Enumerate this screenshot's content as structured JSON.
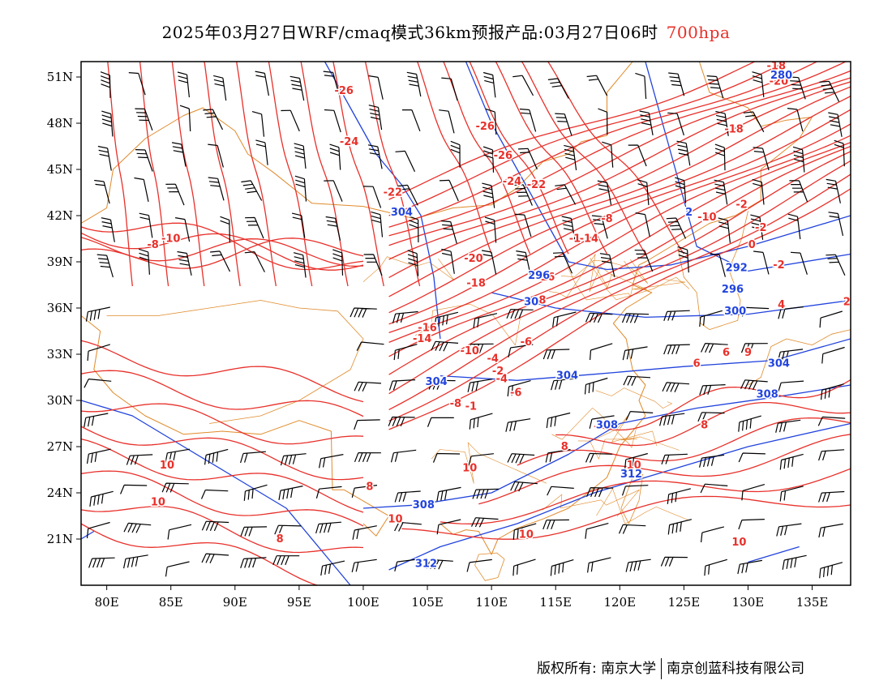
{
  "title": {
    "main": "2025年03月27日WRF/cmaq模式36km预报产品:03月27日06时",
    "level": "700hpa"
  },
  "colors": {
    "temperature": "#e8302a",
    "geopotential": "#2244dd",
    "border": "#e08a2a",
    "wind": "#000000",
    "level_text": "#e8302a"
  },
  "axes": {
    "lon_labels": [
      "80E",
      "85E",
      "90E",
      "95E",
      "100E",
      "105E",
      "110E",
      "115E",
      "120E",
      "125E",
      "130E",
      "135E"
    ],
    "lon_values": [
      80,
      85,
      90,
      95,
      100,
      105,
      110,
      115,
      120,
      125,
      130,
      135
    ],
    "lat_labels": [
      "51N",
      "48N",
      "45N",
      "42N",
      "39N",
      "36N",
      "33N",
      "30N",
      "27N",
      "24N",
      "21N"
    ],
    "lat_values": [
      51,
      48,
      45,
      42,
      39,
      36,
      33,
      30,
      27,
      24,
      21
    ],
    "lon_range": [
      78,
      138
    ],
    "lat_range": [
      18,
      52
    ]
  },
  "temperature_labels": [
    {
      "text": "-26",
      "lon": 98.5,
      "lat": 50.1
    },
    {
      "text": "-24",
      "lon": 98.9,
      "lat": 46.8
    },
    {
      "text": "-26",
      "lon": 109.5,
      "lat": 47.8
    },
    {
      "text": "-26",
      "lon": 110.9,
      "lat": 45.9
    },
    {
      "text": "-24",
      "lon": 111.6,
      "lat": 44.2
    },
    {
      "text": "-22",
      "lon": 113.5,
      "lat": 44.0
    },
    {
      "text": "-22",
      "lon": 102.3,
      "lat": 43.5
    },
    {
      "text": "-20",
      "lon": 108.6,
      "lat": 39.2
    },
    {
      "text": "-18",
      "lon": 108.8,
      "lat": 37.6
    },
    {
      "text": "-18",
      "lon": 132.2,
      "lat": 51.7
    },
    {
      "text": "-20",
      "lon": 132.4,
      "lat": 50.7
    },
    {
      "text": "-18",
      "lon": 128.9,
      "lat": 47.6
    },
    {
      "text": "-8",
      "lon": 83.6,
      "lat": 40.1
    },
    {
      "text": "-10",
      "lon": 85.0,
      "lat": 40.5
    },
    {
      "text": "-16",
      "lon": 105.0,
      "lat": 34.7
    },
    {
      "text": "-14",
      "lon": 104.6,
      "lat": 34.0
    },
    {
      "text": "-16",
      "lon": 114.2,
      "lat": 38.0
    },
    {
      "text": "-8",
      "lon": 113.8,
      "lat": 36.5
    },
    {
      "text": "-14",
      "lon": 117.6,
      "lat": 40.5
    },
    {
      "text": "-1",
      "lon": 116.5,
      "lat": 40.5
    },
    {
      "text": "-10",
      "lon": 126.8,
      "lat": 41.9
    },
    {
      "text": "-2",
      "lon": 129.5,
      "lat": 42.7
    },
    {
      "text": "-10",
      "lon": 108.3,
      "lat": 33.2
    },
    {
      "text": "-6",
      "lon": 112.7,
      "lat": 33.8
    },
    {
      "text": "-4",
      "lon": 110.1,
      "lat": 32.7
    },
    {
      "text": "-2",
      "lon": 110.5,
      "lat": 31.9
    },
    {
      "text": "-4",
      "lon": 110.8,
      "lat": 31.4
    },
    {
      "text": "-6",
      "lon": 111.9,
      "lat": 30.5
    },
    {
      "text": "-8",
      "lon": 107.2,
      "lat": 29.8
    },
    {
      "text": "-1",
      "lon": 108.4,
      "lat": 29.6
    },
    {
      "text": "-2",
      "lon": 131.0,
      "lat": 41.2
    },
    {
      "text": "0",
      "lon": 130.3,
      "lat": 40.1
    },
    {
      "text": "-2",
      "lon": 132.4,
      "lat": 38.8
    },
    {
      "text": "4",
      "lon": 132.6,
      "lat": 36.2
    },
    {
      "text": "2",
      "lon": 137.7,
      "lat": 36.4
    },
    {
      "text": "6",
      "lon": 128.3,
      "lat": 33.1
    },
    {
      "text": "9",
      "lon": 130.0,
      "lat": 33.1
    },
    {
      "text": "6",
      "lon": 126.0,
      "lat": 32.4
    },
    {
      "text": "8",
      "lon": 126.6,
      "lat": 28.4
    },
    {
      "text": "8",
      "lon": 115.7,
      "lat": 27.0
    },
    {
      "text": "10",
      "lon": 84.7,
      "lat": 25.8
    },
    {
      "text": "10",
      "lon": 84.0,
      "lat": 23.4
    },
    {
      "text": "8",
      "lon": 93.5,
      "lat": 21.0
    },
    {
      "text": "8",
      "lon": 100.5,
      "lat": 24.4
    },
    {
      "text": "10",
      "lon": 102.5,
      "lat": 22.3
    },
    {
      "text": "10",
      "lon": 108.3,
      "lat": 25.6
    },
    {
      "text": "10",
      "lon": 112.7,
      "lat": 21.3
    },
    {
      "text": "10",
      "lon": 121.1,
      "lat": 25.8
    },
    {
      "text": "10",
      "lon": 129.3,
      "lat": 20.8
    },
    {
      "text": "-8",
      "lon": 119.0,
      "lat": 41.8
    }
  ],
  "geopotential_labels": [
    {
      "text": "280",
      "lon": 132.6,
      "lat": 51.1
    },
    {
      "text": "304",
      "lon": 103.0,
      "lat": 42.2
    },
    {
      "text": "292",
      "lon": 129.1,
      "lat": 38.6
    },
    {
      "text": "296",
      "lon": 128.8,
      "lat": 37.2
    },
    {
      "text": "300",
      "lon": 129.0,
      "lat": 35.8
    },
    {
      "text": "296",
      "lon": 113.7,
      "lat": 38.1
    },
    {
      "text": "30",
      "lon": 113.1,
      "lat": 36.4
    },
    {
      "text": "304",
      "lon": 115.9,
      "lat": 31.6
    },
    {
      "text": "304",
      "lon": 105.7,
      "lat": 31.2
    },
    {
      "text": "304",
      "lon": 132.4,
      "lat": 32.4
    },
    {
      "text": "308",
      "lon": 131.5,
      "lat": 30.4
    },
    {
      "text": "308",
      "lon": 119.0,
      "lat": 28.4
    },
    {
      "text": "308",
      "lon": 104.7,
      "lat": 23.2
    },
    {
      "text": "312",
      "lon": 120.9,
      "lat": 25.2
    },
    {
      "text": "312",
      "lon": 104.9,
      "lat": 19.4
    },
    {
      "text": "2",
      "lon": 125.4,
      "lat": 42.2
    }
  ],
  "copyright": {
    "left": "版权所有: 南京大学",
    "right": "南京创蓝科技有限公司"
  }
}
